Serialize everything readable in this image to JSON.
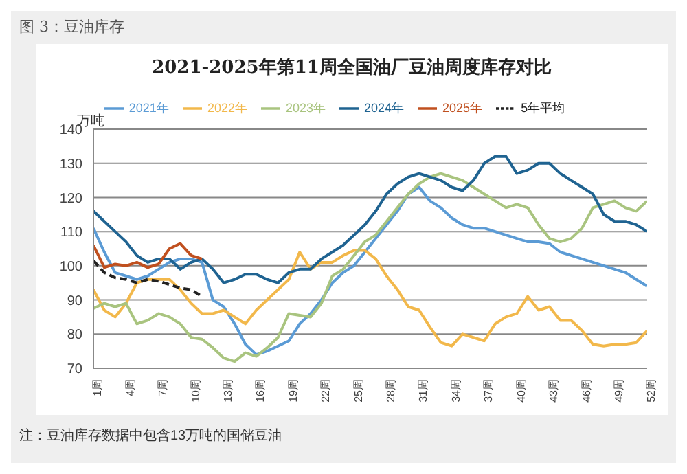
{
  "chart_data": {
    "type": "line",
    "title": "2021-2025年第11周全国油厂豆油周度库存对比",
    "ylabel": "万吨",
    "annotations": [
      "图 3：豆油库存",
      "注：豆油库存数据中包含13万吨的国储豆油"
    ],
    "x": [
      1,
      2,
      3,
      4,
      5,
      6,
      7,
      8,
      9,
      10,
      11,
      12,
      13,
      14,
      15,
      16,
      17,
      18,
      19,
      20,
      21,
      22,
      23,
      24,
      25,
      26,
      27,
      28,
      29,
      30,
      31,
      32,
      33,
      34,
      35,
      36,
      37,
      38,
      39,
      40,
      41,
      42,
      43,
      44,
      45,
      46,
      47,
      48,
      49,
      50,
      51,
      52
    ],
    "xlim": [
      1,
      52
    ],
    "xticks": [
      {
        "value": 1,
        "label": "1周"
      },
      {
        "value": 4,
        "label": "4周"
      },
      {
        "value": 7,
        "label": "7周"
      },
      {
        "value": 10,
        "label": "10周"
      },
      {
        "value": 13,
        "label": "13周"
      },
      {
        "value": 16,
        "label": "16周"
      },
      {
        "value": 19,
        "label": "19周"
      },
      {
        "value": 22,
        "label": "22周"
      },
      {
        "value": 25,
        "label": "25周"
      },
      {
        "value": 28,
        "label": "28周"
      },
      {
        "value": 31,
        "label": "31周"
      },
      {
        "value": 34,
        "label": "34周"
      },
      {
        "value": 37,
        "label": "37周"
      },
      {
        "value": 40,
        "label": "40周"
      },
      {
        "value": 43,
        "label": "43周"
      },
      {
        "value": 46,
        "label": "46周"
      },
      {
        "value": 49,
        "label": "49周"
      },
      {
        "value": 52,
        "label": "52周"
      }
    ],
    "series": [
      {
        "name": "2021年",
        "color": "#5b9bd5",
        "values": [
          111,
          104,
          98,
          97,
          96,
          97,
          99,
          101,
          102,
          102,
          101,
          90,
          88,
          83,
          77,
          74,
          75,
          76.5,
          78,
          83,
          86,
          90,
          95,
          98,
          100,
          104,
          108,
          112,
          116,
          121,
          123,
          119,
          117,
          114,
          112,
          111,
          111,
          110,
          109,
          108,
          107,
          107,
          106.5,
          104,
          103,
          102,
          101,
          100,
          99,
          98,
          96,
          94
        ]
      },
      {
        "name": "2022年",
        "color": "#f2b84b",
        "values": [
          93,
          87,
          85,
          89,
          95,
          96,
          96,
          96,
          93,
          89,
          86,
          86,
          87,
          85,
          83,
          87,
          90,
          93,
          96,
          104,
          99,
          101,
          101,
          103,
          104.5,
          104.5,
          102,
          97,
          93,
          88,
          87,
          82,
          77.5,
          76.5,
          80,
          79,
          78,
          83,
          85,
          86,
          91,
          87,
          88,
          84,
          84,
          81,
          77,
          76.5,
          77,
          77,
          77.5,
          81
        ]
      },
      {
        "name": "2023年",
        "color": "#a9c47f",
        "values": [
          87.5,
          89,
          88,
          89,
          83,
          84,
          86,
          85,
          83,
          79,
          78.5,
          76,
          73,
          72,
          74.5,
          73.5,
          76,
          79,
          86,
          85.5,
          85,
          89,
          97,
          99,
          103,
          107,
          109,
          113,
          117,
          121,
          124,
          126,
          127,
          126,
          125,
          123,
          121,
          119,
          117,
          118,
          117,
          112,
          108,
          107,
          108,
          111,
          117,
          118,
          119,
          117,
          116,
          119
        ]
      },
      {
        "name": "2024年",
        "color": "#1f6391",
        "values": [
          116,
          113,
          110,
          107,
          103,
          101,
          102,
          102,
          99,
          101,
          102,
          99,
          95,
          96,
          97.5,
          97.5,
          96,
          95,
          98,
          99,
          99,
          102,
          104,
          106,
          109,
          112,
          116,
          121,
          124,
          126,
          127,
          126,
          125,
          123,
          122,
          125,
          130,
          132,
          132,
          127,
          128,
          130,
          130,
          127,
          125,
          123,
          121,
          115,
          113,
          113,
          112,
          110
        ]
      },
      {
        "name": "2025年",
        "color": "#c0501f",
        "values": [
          106,
          99.5,
          100.5,
          100,
          101,
          99.5,
          100.5,
          105,
          106.5,
          103,
          102,
          null,
          null,
          null,
          null,
          null,
          null,
          null,
          null,
          null,
          null,
          null,
          null,
          null,
          null,
          null,
          null,
          null,
          null,
          null,
          null,
          null,
          null,
          null,
          null,
          null,
          null,
          null,
          null,
          null,
          null,
          null,
          null,
          null,
          null,
          null,
          null,
          null,
          null,
          null,
          null,
          null
        ]
      },
      {
        "name": "5年平均",
        "color": "#222222",
        "line_style": "dashed",
        "values": [
          101.5,
          98,
          96.5,
          96,
          95,
          96,
          95.5,
          94.5,
          93.5,
          93,
          91,
          null,
          null,
          null,
          null,
          null,
          null,
          null,
          null,
          null,
          null,
          null,
          null,
          null,
          null,
          null,
          null,
          null,
          null,
          null,
          null,
          null,
          null,
          null,
          null,
          null,
          null,
          null,
          null,
          null,
          null,
          null,
          null,
          null,
          null,
          null,
          null,
          null,
          null,
          null,
          null,
          null
        ]
      }
    ],
    "ylim": [
      70,
      140
    ],
    "yticks": [
      70,
      80,
      90,
      100,
      110,
      120,
      130,
      140
    ],
    "grid": "y",
    "legend": "top",
    "marker": "none",
    "line_style": "solid"
  }
}
